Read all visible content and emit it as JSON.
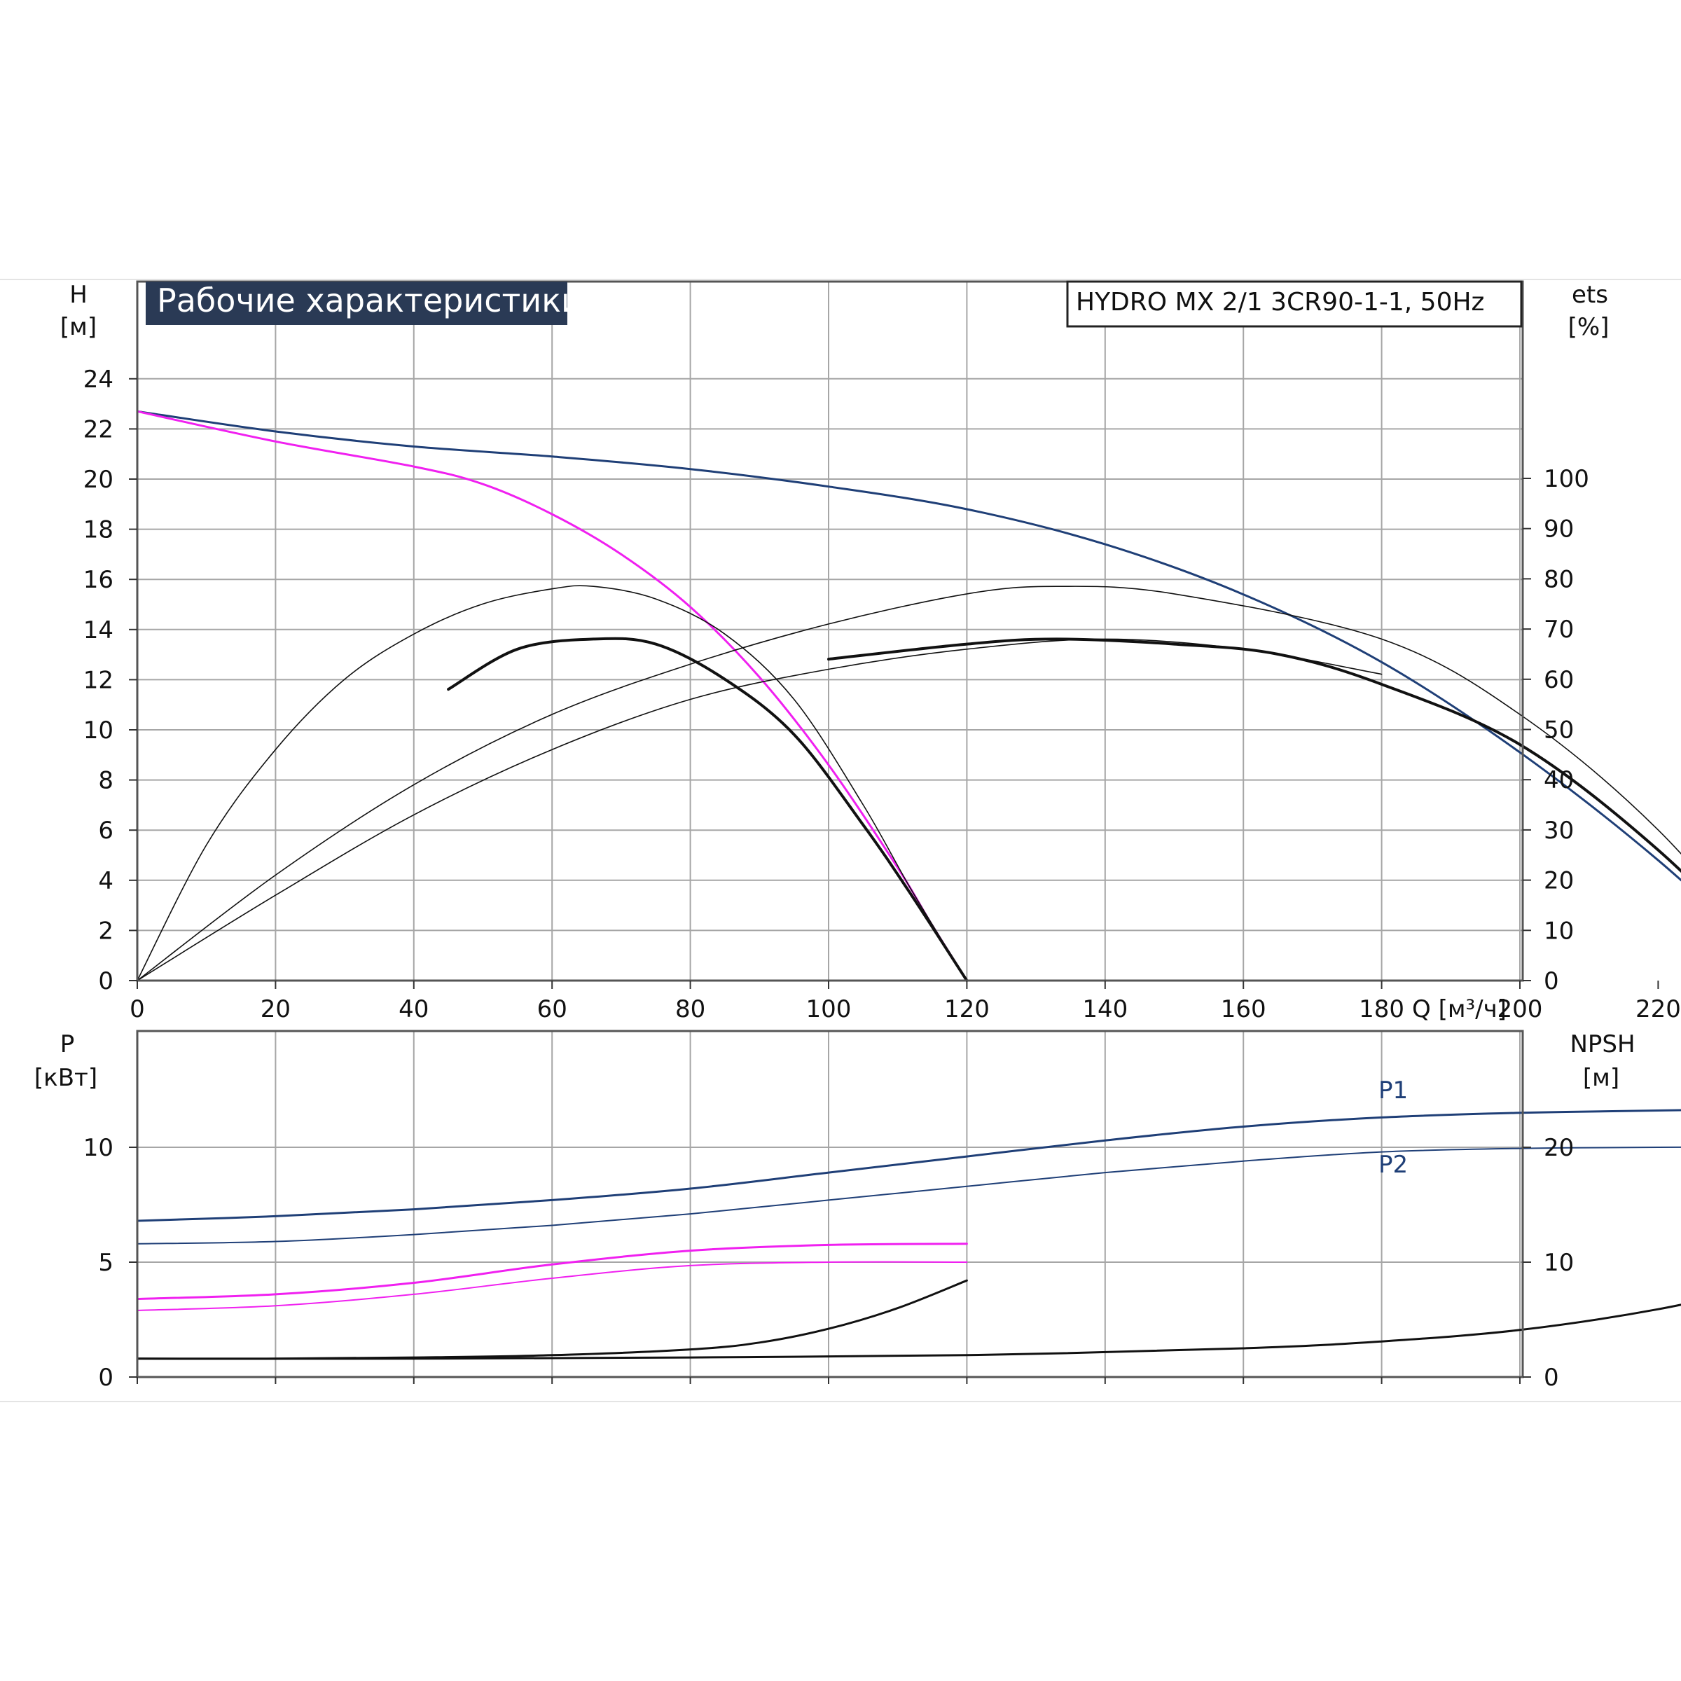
{
  "title_badge": "Рабочие характеристики",
  "model_label": "HYDRO MX 2/1 3CR90-1-1, 50Hz",
  "colors": {
    "blue": "#1f3f77",
    "magenta": "#f020f0",
    "black": "#111111",
    "grid": "#a6a6a6",
    "badge_bg": "#2a3a55",
    "badge_text": "#ffffff"
  },
  "chart_data": [
    {
      "type": "line",
      "id": "performance",
      "ylabel": "H",
      "yunit": "[м]",
      "y2label": "ets",
      "y2unit": "[%]",
      "xlabel": "Q [м³/ч]",
      "xlim": [
        0,
        260
      ],
      "ylim": [
        0,
        24
      ],
      "y2lim": [
        0,
        130
      ],
      "grid": true,
      "x_ticks": [
        "0",
        "20",
        "40",
        "60",
        "80",
        "100",
        "120",
        "140",
        "160",
        "180",
        "200",
        "220"
      ],
      "y_ticks": [
        "0",
        "2",
        "4",
        "6",
        "8",
        "10",
        "12",
        "14",
        "16",
        "18",
        "20",
        "22",
        "24"
      ],
      "y2_ticks": [
        "0",
        "10",
        "20",
        "30",
        "40",
        "50",
        "60",
        "70",
        "80",
        "90",
        "100"
      ],
      "series": [
        {
          "axis": "left",
          "color": "#1f3f77",
          "width": 3,
          "x": [
            0,
            20,
            40,
            60,
            80,
            100,
            120,
            140,
            160,
            180,
            200,
            220,
            239
          ],
          "y": [
            22.7,
            21.9,
            21.3,
            20.9,
            20.4,
            19.7,
            18.8,
            17.4,
            15.4,
            12.7,
            9.1,
            4.8,
            0
          ]
        },
        {
          "axis": "left",
          "color": "#f020f0",
          "width": 3,
          "x": [
            0,
            20,
            40,
            50,
            60,
            70,
            80,
            90,
            100,
            110,
            115,
            120
          ],
          "y": [
            22.7,
            21.5,
            20.5,
            19.8,
            18.6,
            17.0,
            14.9,
            12.1,
            8.6,
            4.5,
            2.2,
            0
          ]
        },
        {
          "axis": "right",
          "color": "#111111",
          "width": 1.6,
          "x": [
            0,
            10,
            20,
            30,
            40,
            50,
            60,
            66,
            75,
            85,
            95,
            105,
            112,
            120
          ],
          "y": [
            0,
            27,
            46,
            60,
            69,
            75,
            78,
            78.5,
            76,
            69,
            56,
            35,
            18,
            0
          ]
        },
        {
          "axis": "right",
          "color": "#111111",
          "width": 4,
          "x": [
            45,
            55,
            66,
            75,
            85,
            95,
            105,
            112,
            120
          ],
          "y": [
            58,
            66,
            68,
            67,
            60,
            49,
            31,
            17,
            0
          ]
        },
        {
          "axis": "right",
          "color": "#111111",
          "width": 1.6,
          "x": [
            0,
            20,
            40,
            60,
            80,
            100,
            120,
            133,
            150,
            180,
            200,
            220,
            239
          ],
          "y": [
            0,
            21,
            39,
            53,
            63,
            71,
            77,
            78.5,
            77,
            68,
            53,
            30,
            0
          ]
        },
        {
          "axis": "right",
          "color": "#111111",
          "width": 1.6,
          "x": [
            0,
            20,
            40,
            60,
            80,
            100,
            120,
            140,
            160,
            180
          ],
          "y": [
            0,
            17,
            33,
            46,
            56,
            62,
            66,
            68,
            66,
            61
          ]
        },
        {
          "axis": "right",
          "color": "#111111",
          "width": 4,
          "x": [
            100,
            120,
            133,
            150,
            165,
            180,
            200,
            220,
            239
          ],
          "y": [
            64,
            67,
            68,
            67,
            65,
            59,
            47,
            26,
            0
          ]
        }
      ]
    },
    {
      "type": "line",
      "id": "power",
      "ylabel": "P",
      "yunit": "[кВт]",
      "y2label": "NPSH",
      "y2unit": "[м]",
      "xlim": [
        0,
        260
      ],
      "ylim": [
        0,
        15
      ],
      "y2lim": [
        0,
        30
      ],
      "grid": true,
      "y_ticks": [
        "0",
        "5",
        "10"
      ],
      "y2_ticks": [
        "0",
        "10",
        "20"
      ],
      "series": [
        {
          "name": "P1",
          "axis": "left",
          "color": "#1f3f77",
          "width": 3,
          "x": [
            0,
            20,
            40,
            60,
            80,
            100,
            120,
            140,
            160,
            180,
            200,
            220,
            239
          ],
          "y": [
            6.8,
            7.0,
            7.3,
            7.7,
            8.2,
            8.9,
            9.6,
            10.3,
            10.9,
            11.3,
            11.5,
            11.6,
            11.7
          ]
        },
        {
          "name": "P2",
          "axis": "left",
          "color": "#1f3f77",
          "width": 2,
          "x": [
            0,
            20,
            40,
            60,
            80,
            100,
            120,
            140,
            160,
            180,
            200,
            220,
            239
          ],
          "y": [
            5.8,
            5.9,
            6.2,
            6.6,
            7.1,
            7.7,
            8.3,
            8.9,
            9.4,
            9.8,
            9.95,
            10.0,
            10.0
          ]
        },
        {
          "axis": "left",
          "color": "#f020f0",
          "width": 3,
          "x": [
            0,
            20,
            40,
            60,
            80,
            100,
            120
          ],
          "y": [
            3.4,
            3.6,
            4.1,
            4.9,
            5.5,
            5.75,
            5.8
          ]
        },
        {
          "axis": "left",
          "color": "#f020f0",
          "width": 2,
          "x": [
            0,
            20,
            40,
            60,
            80,
            100,
            120
          ],
          "y": [
            2.9,
            3.1,
            3.6,
            4.3,
            4.85,
            5.0,
            5.0
          ]
        },
        {
          "axis": "right",
          "color": "#111111",
          "width": 3,
          "x": [
            0,
            20,
            40,
            60,
            80,
            90,
            100,
            110,
            120
          ],
          "y": [
            1.6,
            1.6,
            1.7,
            1.9,
            2.4,
            3.0,
            4.2,
            6.0,
            8.4
          ]
        },
        {
          "axis": "right",
          "color": "#111111",
          "width": 3,
          "x": [
            0,
            40,
            80,
            120,
            160,
            180,
            200,
            220,
            239
          ],
          "y": [
            1.6,
            1.6,
            1.7,
            1.9,
            2.5,
            3.1,
            4.1,
            5.9,
            8.4
          ]
        }
      ]
    }
  ]
}
